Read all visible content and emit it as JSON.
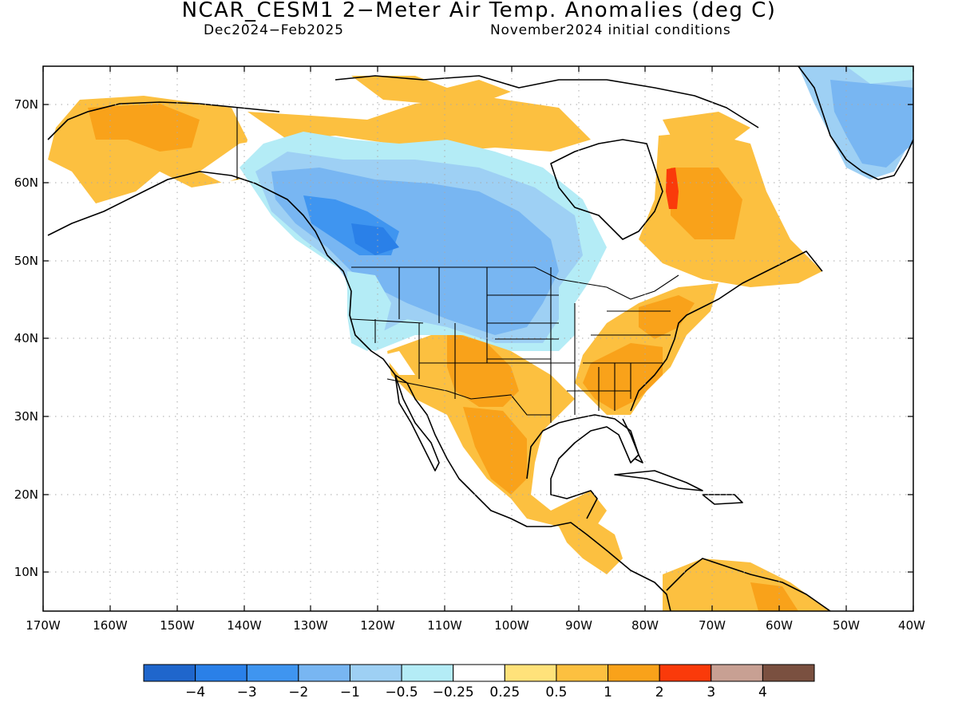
{
  "title": "NCAR_CESM1 2−Meter Air Temp. Anomalies (deg C)",
  "subtitle_left": "Dec2024−Feb2025",
  "subtitle_right": "November2024 initial conditions",
  "map": {
    "lat_ticks": [
      "70N",
      "60N",
      "50N",
      "40N",
      "30N",
      "20N",
      "10N"
    ],
    "lon_ticks": [
      "170W",
      "160W",
      "150W",
      "140W",
      "130W",
      "120W",
      "110W",
      "100W",
      "90W",
      "80W",
      "70W",
      "60W",
      "50W",
      "40W"
    ],
    "lon_range": [
      -170,
      -40
    ],
    "lat_range": [
      5,
      75
    ]
  },
  "legend": {
    "colors": [
      "#1f66cc",
      "#2a80e8",
      "#3f95f0",
      "#78b6f2",
      "#9ed0f4",
      "#b4ecf6",
      "#ffffff",
      "#ffe27a",
      "#fcc040",
      "#f9a21a",
      "#fa3a0a",
      "#c8a093",
      "#7a5040"
    ],
    "labels": [
      "−4",
      "−3",
      "−2",
      "−1",
      "−0.5",
      "−0.25",
      "0.25",
      "0.5",
      "1",
      "2",
      "3",
      "4"
    ]
  }
}
